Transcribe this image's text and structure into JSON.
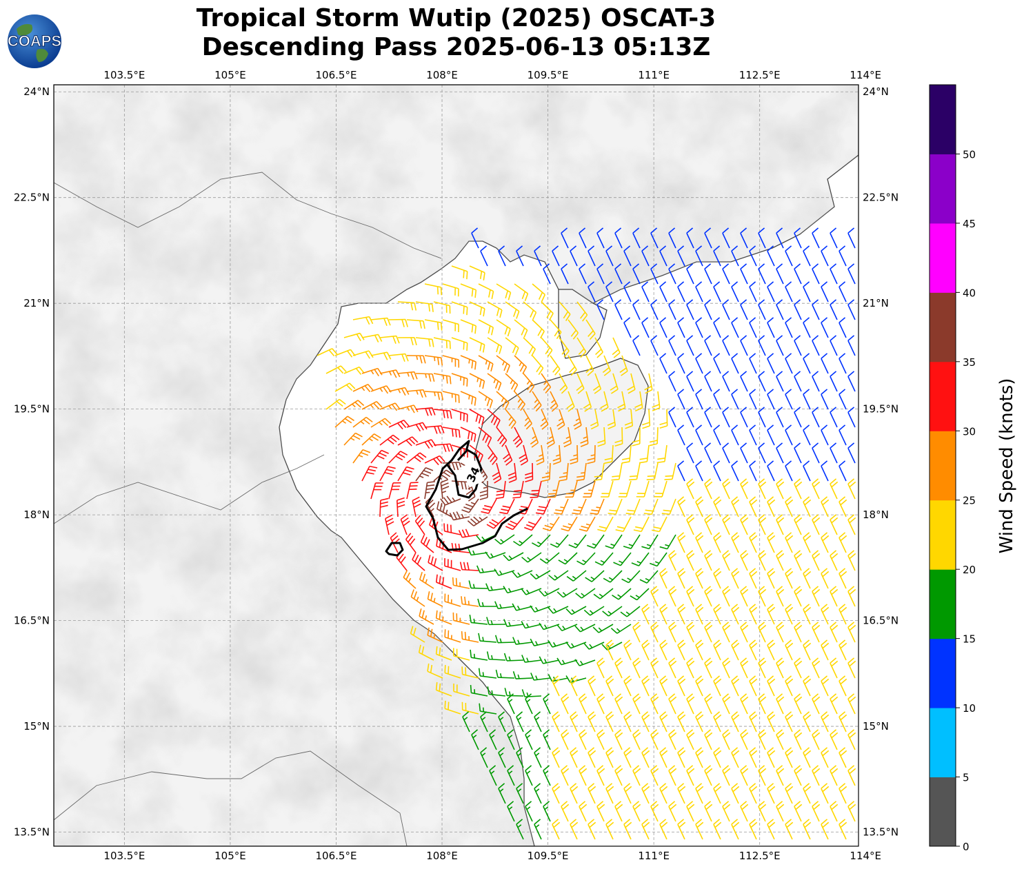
{
  "title": {
    "line1": "Tropical Storm Wutip (2025) OSCAT-3",
    "line2": "Descending Pass 2025-06-13 05:13Z"
  },
  "logo": {
    "text": "COAPS",
    "icon": "globe-logo-icon"
  },
  "map": {
    "lon_range": [
      102.5,
      113.9
    ],
    "lat_range": [
      13.3,
      24.1
    ],
    "lon_ticks": [
      "103.5°E",
      "105°E",
      "106.5°E",
      "108°E",
      "109.5°E",
      "111°E",
      "112.5°E",
      "114°E"
    ],
    "lat_ticks": [
      "24°N",
      "22.5°N",
      "21°N",
      "19.5°N",
      "18°N",
      "16.5°N",
      "15°N",
      "13.5°N"
    ],
    "gridlines": true,
    "contour_label": "34",
    "colors": {
      "land_light": "#f3f3f3",
      "land_dark": "#9a9a9a",
      "coast": "#444444",
      "contour": "#000000"
    }
  },
  "colorbar": {
    "label": "Wind Speed (knots)",
    "ticks": [
      "0",
      "5",
      "10",
      "15",
      "20",
      "25",
      "30",
      "35",
      "40",
      "45",
      "50"
    ],
    "colors": [
      "#555555",
      "#00bfff",
      "#0033ff",
      "#009900",
      "#ffd700",
      "#ff8c00",
      "#ff1111",
      "#8b3a2b",
      "#ff00ff",
      "#8b00c9",
      "#2b0066"
    ]
  }
}
